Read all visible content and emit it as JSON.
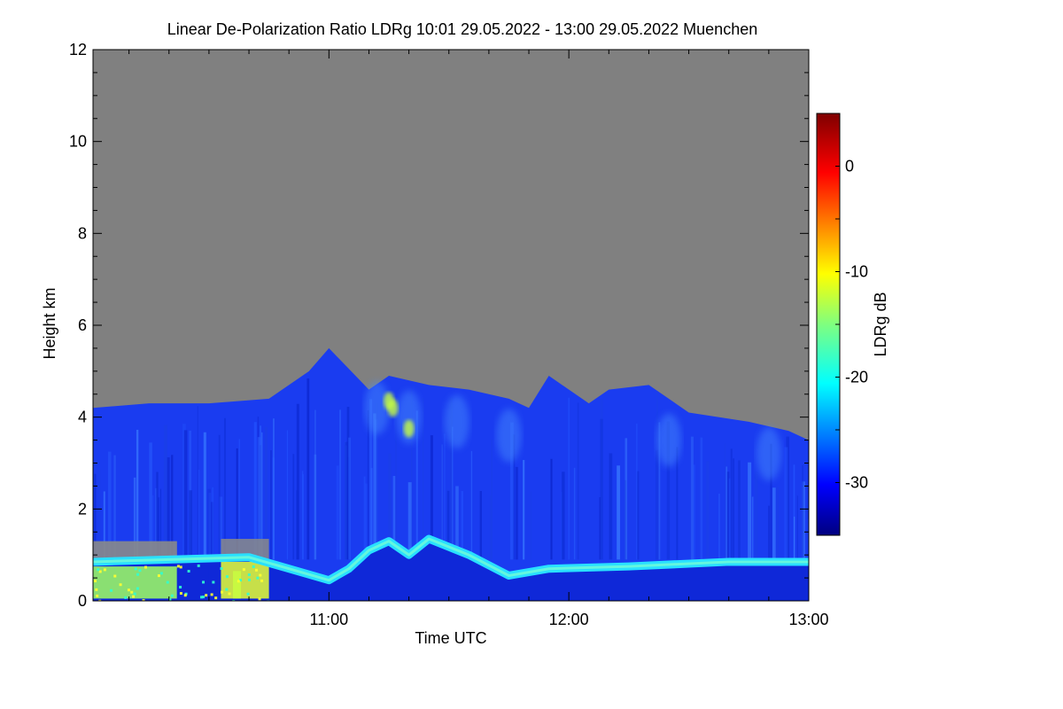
{
  "chart_data": {
    "type": "heatmap",
    "title": "Linear De-Polarization Ratio LDRg   10:01 29.05.2022 - 13:00 29.05.2022 Muenchen",
    "xlabel": "Time UTC",
    "ylabel": "Height km",
    "colorbar_label": "LDRg dB",
    "x_range": [
      "10:01",
      "13:00"
    ],
    "x_ticks": [
      "11:00",
      "12:00",
      "13:00"
    ],
    "ylim": [
      0,
      12
    ],
    "y_ticks": [
      "0",
      "2",
      "4",
      "6",
      "8",
      "10",
      "12"
    ],
    "colorbar_range": [
      -35,
      5
    ],
    "colorbar_ticks": [
      "0",
      "-10",
      "-20",
      "-30"
    ],
    "no_signal_color": "#808080",
    "cloud_top_profile": [
      {
        "time": "10:01",
        "height": 4.2
      },
      {
        "time": "10:15",
        "height": 4.3
      },
      {
        "time": "10:30",
        "height": 4.3
      },
      {
        "time": "10:45",
        "height": 4.4
      },
      {
        "time": "10:55",
        "height": 5.0
      },
      {
        "time": "11:00",
        "height": 5.5
      },
      {
        "time": "11:10",
        "height": 4.6
      },
      {
        "time": "11:15",
        "height": 4.9
      },
      {
        "time": "11:25",
        "height": 4.7
      },
      {
        "time": "11:35",
        "height": 4.6
      },
      {
        "time": "11:45",
        "height": 4.4
      },
      {
        "time": "11:50",
        "height": 4.2
      },
      {
        "time": "11:55",
        "height": 4.9
      },
      {
        "time": "12:05",
        "height": 4.3
      },
      {
        "time": "12:10",
        "height": 4.6
      },
      {
        "time": "12:20",
        "height": 4.7
      },
      {
        "time": "12:30",
        "height": 4.1
      },
      {
        "time": "12:45",
        "height": 3.9
      },
      {
        "time": "12:55",
        "height": 3.7
      },
      {
        "time": "13:00",
        "height": 3.5
      }
    ],
    "boundary_layer_profile": [
      {
        "time": "10:01",
        "height": 0.85
      },
      {
        "time": "10:40",
        "height": 0.95
      },
      {
        "time": "10:50",
        "height": 0.7
      },
      {
        "time": "11:00",
        "height": 0.45
      },
      {
        "time": "11:05",
        "height": 0.7
      },
      {
        "time": "11:10",
        "height": 1.1
      },
      {
        "time": "11:15",
        "height": 1.3
      },
      {
        "time": "11:20",
        "height": 1.0
      },
      {
        "time": "11:25",
        "height": 1.35
      },
      {
        "time": "11:35",
        "height": 1.0
      },
      {
        "time": "11:45",
        "height": 0.55
      },
      {
        "time": "11:55",
        "height": 0.7
      },
      {
        "time": "12:15",
        "height": 0.75
      },
      {
        "time": "12:40",
        "height": 0.85
      },
      {
        "time": "13:00",
        "height": 0.85
      }
    ]
  }
}
